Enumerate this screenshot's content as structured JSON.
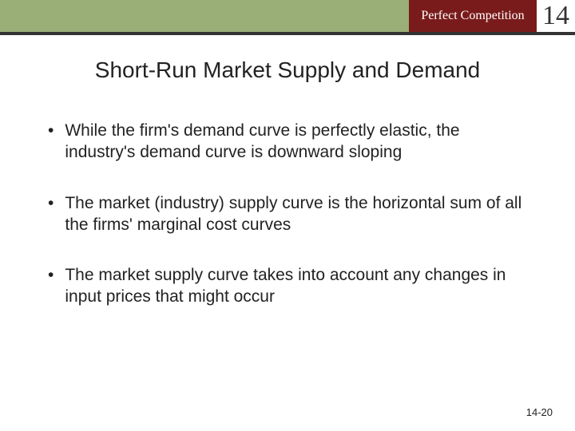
{
  "header": {
    "chapter_label": "Perfect Competition",
    "chapter_number": "14",
    "bar_color": "#9aae78",
    "box_color": "#7a1b1b",
    "rule_color": "#333333"
  },
  "title": "Short-Run Market Supply and Demand",
  "bullets": [
    "While the firm's demand curve is perfectly elastic, the industry's demand curve is downward sloping",
    "The market (industry) supply curve is the horizontal sum of all the firms' marginal cost curves",
    "The market supply curve takes into account any changes in input prices that might occur"
  ],
  "page_number": "14-20",
  "typography": {
    "title_fontsize": 28,
    "body_fontsize": 21,
    "chapter_num_fontsize": 34,
    "chapter_label_fontsize": 16,
    "pagenum_fontsize": 13
  },
  "colors": {
    "background": "#ffffff",
    "text": "#222222",
    "header_bar": "#9aae78",
    "chapter_box": "#7a1b1b",
    "chapter_text": "#ffffff"
  }
}
